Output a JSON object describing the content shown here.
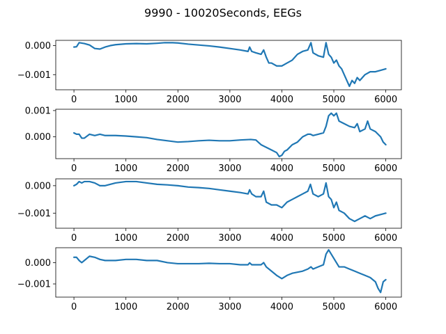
{
  "figure": {
    "title": "9990 - 10020Seconds, EEGs"
  },
  "style": {
    "line_color": "#1f77b4",
    "axes_color": "#000000",
    "background": "#ffffff"
  },
  "chart_data": [
    {
      "type": "line",
      "xlim": [
        -350,
        6300
      ],
      "ylim": [
        -0.00152,
        0.00018
      ],
      "xticks": [
        0,
        1000,
        2000,
        3000,
        4000,
        5000,
        6000
      ],
      "yticks": [
        0.0,
        -0.001
      ],
      "ytick_labels": [
        "0.000",
        "−0.001"
      ],
      "grid": false,
      "series": [
        {
          "x": [
            0,
            50,
            100,
            200,
            300,
            400,
            500,
            600,
            700,
            800,
            1000,
            1200,
            1400,
            1600,
            1750,
            1900,
            2000,
            2200,
            2400,
            2600,
            2800,
            3000,
            3200,
            3350,
            3380,
            3420,
            3500,
            3600,
            3650,
            3700,
            3750,
            3800,
            3900,
            4000,
            4100,
            4200,
            4300,
            4400,
            4500,
            4560,
            4600,
            4700,
            4800,
            4850,
            4900,
            4950,
            5000,
            5050,
            5100,
            5150,
            5200,
            5250,
            5300,
            5350,
            5400,
            5450,
            5500,
            5600,
            5700,
            5800,
            5900,
            6000
          ],
          "y": [
            -5e-05,
            -4e-05,
            0.0001,
            7e-05,
            2e-05,
            -0.0001,
            -0.00012,
            -5e-05,
            0.0,
            3e-05,
            6e-05,
            7e-05,
            6e-05,
            8e-05,
            0.0001,
            0.0001,
            9e-05,
            5e-05,
            2e-05,
            -1e-05,
            -5e-05,
            -0.0001,
            -0.00015,
            -0.0002,
            -5e-05,
            -0.0002,
            -0.00025,
            -0.0003,
            -0.00015,
            -0.0004,
            -0.0006,
            -0.0006,
            -0.0007,
            -0.0007,
            -0.0006,
            -0.0005,
            -0.0003,
            -0.0002,
            -0.00015,
            0.0001,
            -0.00025,
            -0.00035,
            -0.0004,
            0.0001,
            -0.0003,
            -0.0004,
            -0.0006,
            -0.0005,
            -0.0007,
            -0.0008,
            -0.001,
            -0.0012,
            -0.0014,
            -0.0012,
            -0.0013,
            -0.0011,
            -0.0012,
            -0.001,
            -0.0009,
            -0.0009,
            -0.00085,
            -0.0008
          ]
        }
      ]
    },
    {
      "type": "line",
      "xlim": [
        -350,
        6300
      ],
      "ylim": [
        -0.00083,
        0.00105
      ],
      "xticks": [
        0,
        1000,
        2000,
        3000,
        4000,
        5000,
        6000
      ],
      "yticks": [
        0.001,
        0.0
      ],
      "ytick_labels": [
        "0.001",
        "0.000"
      ],
      "grid": false,
      "series": [
        {
          "x": [
            0,
            50,
            100,
            150,
            200,
            300,
            400,
            500,
            600,
            800,
            1000,
            1200,
            1400,
            1600,
            1800,
            2000,
            2200,
            2400,
            2600,
            2800,
            3000,
            3200,
            3400,
            3500,
            3600,
            3700,
            3800,
            3900,
            3950,
            4000,
            4050,
            4100,
            4200,
            4300,
            4400,
            4500,
            4550,
            4600,
            4700,
            4800,
            4850,
            4900,
            4950,
            5000,
            5050,
            5100,
            5200,
            5300,
            5400,
            5450,
            5500,
            5600,
            5650,
            5700,
            5800,
            5900,
            5950,
            6000
          ],
          "y": [
            0.00015,
            0.0001,
            0.0001,
            -5e-05,
            -5e-05,
            0.0001,
            5e-05,
            0.0001,
            5e-05,
            5e-05,
            3e-05,
            0.0,
            -3e-05,
            -0.0001,
            -0.00015,
            -0.0002,
            -0.00018,
            -0.00015,
            -0.00013,
            -0.00015,
            -0.00015,
            -0.00012,
            -0.0001,
            -0.00012,
            -0.0003,
            -0.0004,
            -0.0005,
            -0.0006,
            -0.00075,
            -0.0007,
            -0.00055,
            -0.0005,
            -0.0003,
            -0.0002,
            0.0,
            0.0001,
            0.0001,
            5e-05,
            0.0001,
            0.00015,
            0.0004,
            0.0008,
            0.0009,
            0.0008,
            0.0009,
            0.0006,
            0.0005,
            0.0004,
            0.00035,
            0.0005,
            0.0002,
            0.0003,
            0.0006,
            0.0003,
            0.0002,
            0.0,
            -0.0002,
            -0.0003
          ]
        }
      ]
    },
    {
      "type": "line",
      "xlim": [
        -350,
        6300
      ],
      "ylim": [
        -0.00155,
        0.00025
      ],
      "xticks": [
        0,
        1000,
        2000,
        3000,
        4000,
        5000,
        6000
      ],
      "yticks": [
        0.0,
        -0.001
      ],
      "ytick_labels": [
        "0.000",
        "−0.001"
      ],
      "grid": false,
      "series": [
        {
          "x": [
            0,
            50,
            100,
            150,
            200,
            300,
            400,
            500,
            600,
            800,
            1000,
            1200,
            1400,
            1600,
            1800,
            2000,
            2200,
            2400,
            2600,
            2800,
            3000,
            3200,
            3350,
            3380,
            3420,
            3500,
            3600,
            3650,
            3700,
            3800,
            3900,
            4000,
            4100,
            4200,
            4300,
            4400,
            4500,
            4550,
            4600,
            4700,
            4800,
            4850,
            4900,
            4950,
            5000,
            5050,
            5100,
            5200,
            5300,
            5400,
            5500,
            5600,
            5700,
            5800,
            5900,
            6000
          ],
          "y": [
            0.0,
            5e-05,
            0.00015,
            0.0001,
            0.00015,
            0.00015,
            0.0001,
            0.0,
            0.0,
            0.0001,
            0.00015,
            0.00015,
            0.0001,
            5e-05,
            3e-05,
            0.0,
            -5e-05,
            -7e-05,
            -0.0001,
            -0.00015,
            -0.0002,
            -0.00025,
            -0.0003,
            -0.00015,
            -0.0003,
            -0.0004,
            -0.0004,
            -0.0002,
            -0.0006,
            -0.0007,
            -0.0007,
            -0.0008,
            -0.0006,
            -0.0005,
            -0.0004,
            -0.0003,
            -0.0002,
            5e-05,
            -0.0003,
            -0.0004,
            -0.0003,
            0.0001,
            -0.0004,
            -0.0005,
            -0.0008,
            -0.0006,
            -0.0009,
            -0.001,
            -0.0012,
            -0.0013,
            -0.0012,
            -0.0011,
            -0.0012,
            -0.0011,
            -0.00105,
            -0.001
          ]
        }
      ]
    },
    {
      "type": "line",
      "xlim": [
        -350,
        6300
      ],
      "ylim": [
        -0.00162,
        0.0007
      ],
      "xticks": [
        0,
        1000,
        2000,
        3000,
        4000,
        5000,
        6000
      ],
      "yticks": [
        0.0,
        -0.001
      ],
      "ytick_labels": [
        "0.000",
        "−0.001"
      ],
      "grid": false,
      "series": [
        {
          "x": [
            0,
            50,
            100,
            150,
            200,
            300,
            400,
            500,
            600,
            800,
            1000,
            1200,
            1400,
            1600,
            1800,
            2000,
            2200,
            2400,
            2600,
            2800,
            3000,
            3200,
            3350,
            3380,
            3420,
            3500,
            3600,
            3650,
            3700,
            3800,
            3900,
            4000,
            4100,
            4200,
            4300,
            4400,
            4500,
            4560,
            4600,
            4700,
            4800,
            4850,
            4900,
            4950,
            5000,
            5050,
            5100,
            5200,
            5300,
            5400,
            5500,
            5600,
            5700,
            5800,
            5850,
            5900,
            5950,
            6000
          ],
          "y": [
            0.00025,
            0.00025,
            0.0001,
            0.0,
            0.0001,
            0.0003,
            0.00025,
            0.00015,
            0.0001,
            0.0001,
            0.00015,
            0.00015,
            0.0001,
            0.0001,
            0.0,
            -5e-05,
            -5e-05,
            -5e-05,
            -3e-05,
            -5e-05,
            -5e-05,
            -0.0001,
            -0.0001,
            -1e-05,
            -0.0001,
            -0.0001,
            -0.0001,
            0.0,
            -0.0002,
            -0.0004,
            -0.0006,
            -0.00075,
            -0.0006,
            -0.0005,
            -0.00045,
            -0.0004,
            -0.0003,
            -0.0002,
            -0.0003,
            -0.0002,
            -0.0001,
            0.0004,
            0.0006,
            0.0004,
            0.0002,
            0.0,
            -0.0002,
            -0.0002,
            -0.0003,
            -0.0004,
            -0.0005,
            -0.0006,
            -0.0007,
            -0.0009,
            -0.0012,
            -0.0014,
            -0.0009,
            -0.0008
          ]
        }
      ]
    }
  ]
}
